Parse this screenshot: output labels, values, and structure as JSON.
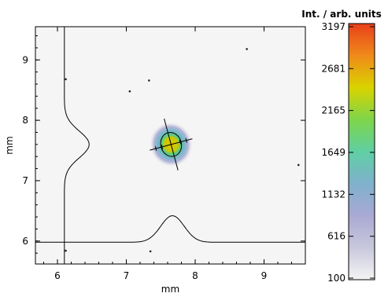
{
  "chart_data": {
    "type": "heatmap",
    "title": "",
    "xlabel": "mm",
    "ylabel": "mm",
    "xlim": [
      5.68,
      9.6
    ],
    "ylim": [
      5.62,
      9.55
    ],
    "xticks": [
      6,
      7,
      8,
      9
    ],
    "yticks": [
      6,
      7,
      8,
      9
    ],
    "x_tick_labels": [
      "6",
      "7",
      "8",
      "9"
    ],
    "y_tick_labels": [
      "6",
      "7",
      "8",
      "9"
    ],
    "grid": false,
    "spot": {
      "center_x": 7.65,
      "center_y": 7.6,
      "peak_intensity": 3197,
      "contour_semi_axis_x": 0.15,
      "contour_semi_axis_y": 0.2,
      "orientation_deg": -15
    },
    "horizontal_profile": {
      "baseline_y": 5.98,
      "peak_x": 7.67,
      "peak_y": 6.42,
      "note_axis": "x"
    },
    "vertical_profile": {
      "baseline_x": 6.1,
      "peak_y": 7.6,
      "peak_x": 6.46
    },
    "colorbar": {
      "title": "Int. / arb. units",
      "min": 100,
      "max": 3197,
      "tick_values": [
        100,
        616,
        1132,
        1649,
        2165,
        2681,
        3197
      ],
      "tick_labels": [
        "100",
        "616",
        "1132",
        "1649",
        "2165",
        "2681",
        "3197"
      ],
      "colors": [
        "#f4f4f4",
        "#c8c8dc",
        "#a9a9d4",
        "#7fb0cc",
        "#5fcfa4",
        "#7ed54a",
        "#d9d300",
        "#f08a1a",
        "#e8401a"
      ]
    },
    "specks": [
      {
        "x": 6.12,
        "y": 8.68
      },
      {
        "x": 7.05,
        "y": 8.48
      },
      {
        "x": 7.33,
        "y": 8.66
      },
      {
        "x": 8.75,
        "y": 9.18
      },
      {
        "x": 9.5,
        "y": 7.26
      },
      {
        "x": 7.35,
        "y": 5.83
      },
      {
        "x": 6.12,
        "y": 5.84
      }
    ]
  }
}
